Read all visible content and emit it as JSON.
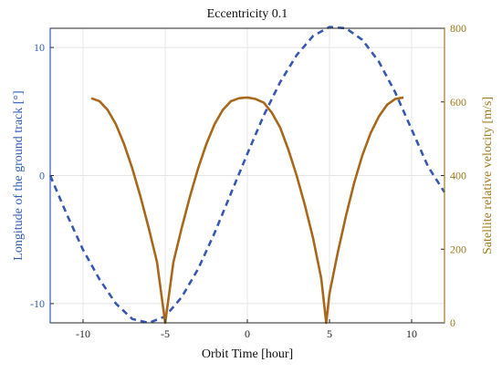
{
  "chart_data": {
    "type": "line",
    "title": "Eccentricity 0.1",
    "xlabel": "Orbit Time [hour]",
    "ylabel_left": "Longitude of the ground track [°]",
    "ylabel_right": "Satellite relative velocity [m/s]",
    "xlim": [
      -12,
      12
    ],
    "ylim_left": [
      -11.5,
      11.5
    ],
    "ylim_right": [
      0,
      800
    ],
    "xticks": [
      -10,
      -5,
      0,
      5,
      10
    ],
    "yticks_left": [
      -10,
      0,
      10
    ],
    "yticks_right": [
      0,
      200,
      400,
      600,
      800
    ],
    "grid": true,
    "colors": {
      "left_axis": "#2e5cb8",
      "right_axis": "#a07a1e",
      "series_longitude": "#3858b0",
      "series_velocity": "#a8681c"
    },
    "series": [
      {
        "axis": "left",
        "style": "dashed",
        "x": [
          -12,
          -11,
          -10,
          -9,
          -8,
          -7,
          -6,
          -5,
          -4,
          -3,
          -2,
          -1,
          0,
          1,
          2,
          3,
          4,
          5,
          6,
          7,
          8,
          9,
          10,
          11,
          12
        ],
        "values": [
          0,
          -3,
          -5.8,
          -8.1,
          -10,
          -11.2,
          -11.5,
          -11,
          -9.5,
          -7.3,
          -4.5,
          -1.4,
          1.7,
          4.7,
          7.3,
          9.4,
          10.9,
          11.6,
          11.5,
          10.6,
          8.9,
          6.5,
          3.6,
          0.7,
          -1.3
        ]
      },
      {
        "axis": "right",
        "style": "solid",
        "x": [
          -9.5,
          -9,
          -8.5,
          -8,
          -7.5,
          -7,
          -6.5,
          -6,
          -5.5,
          -5,
          -4.5,
          -4,
          -3.5,
          -3,
          -2.5,
          -2,
          -1.5,
          -1,
          -0.5,
          0,
          0.5,
          1,
          1.5,
          2,
          2.5,
          3,
          3.5,
          4,
          4.5,
          4.8,
          5,
          5.5,
          6,
          6.5,
          7,
          7.5,
          8,
          8.5,
          9,
          9.5
        ],
        "values": [
          610,
          602,
          578,
          539,
          485,
          419,
          342,
          257,
          165,
          0,
          165,
          257,
          342,
          419,
          485,
          539,
          578,
          602,
          610,
          612,
          608,
          598,
          570,
          530,
          470,
          400,
          320,
          230,
          120,
          0,
          80,
          190,
          290,
          380,
          455,
          515,
          560,
          592,
          608,
          612
        ]
      }
    ]
  }
}
